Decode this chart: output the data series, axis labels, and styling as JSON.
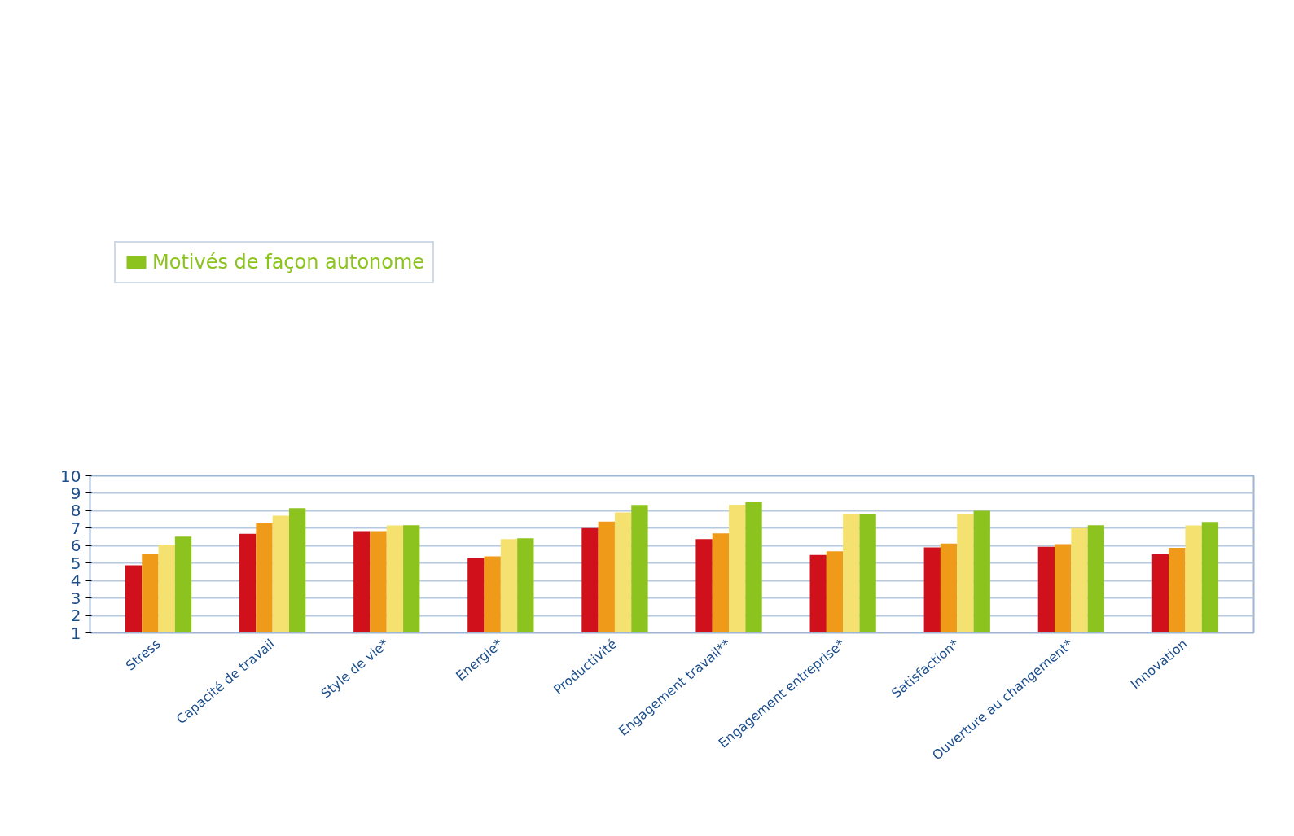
{
  "chart_data": {
    "type": "bar",
    "categories": [
      "Stress",
      "Capacité de travail",
      "Style de vie*",
      "Energie*",
      "Productivité",
      "Engagement travail**",
      "Engagement entreprise*",
      "Satisfaction*",
      "Ouverture au changement*",
      "Innovation"
    ],
    "series": [
      {
        "color": "#d0101a",
        "values": [
          4.87,
          6.68,
          6.83,
          5.28,
          7.0,
          6.37,
          5.47,
          5.9,
          5.93,
          5.52
        ]
      },
      {
        "color": "#f09a1a",
        "values": [
          5.55,
          7.28,
          6.83,
          5.38,
          7.38,
          6.7,
          5.67,
          6.12,
          6.08,
          5.87
        ]
      },
      {
        "color": "#f5e170",
        "values": [
          6.05,
          7.72,
          7.15,
          6.38,
          7.9,
          8.35,
          7.8,
          7.8,
          7.0,
          7.15
        ]
      },
      {
        "name": "Motivés de façon autonome",
        "color": "#8cc31e",
        "values": [
          6.52,
          8.15,
          7.17,
          6.42,
          8.33,
          8.48,
          7.83,
          8.0,
          7.17,
          7.35
        ]
      }
    ],
    "ylim": [
      1,
      10
    ],
    "yticks": [
      1,
      2,
      3,
      4,
      5,
      6,
      7,
      8,
      9,
      10
    ],
    "grid": "y",
    "legend": "top left"
  }
}
